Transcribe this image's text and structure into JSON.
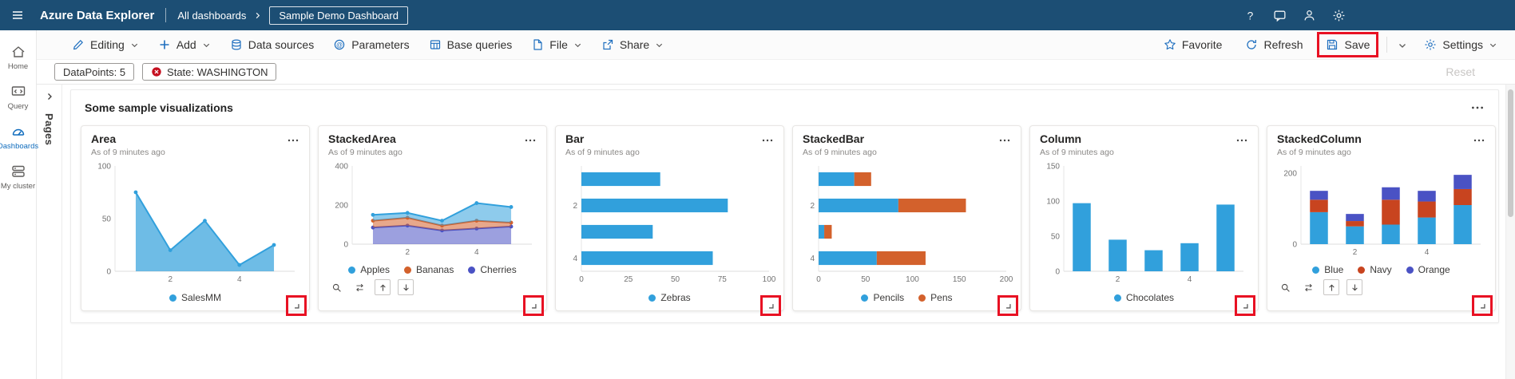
{
  "highlights": {
    "color": "#e81123",
    "save_button": true,
    "tile_resize_handles": true
  },
  "topbar": {
    "app_title": "Azure Data Explorer",
    "breadcrumb": {
      "root": "All dashboards",
      "current": "Sample Demo Dashboard"
    },
    "right_icons": [
      "help",
      "feedback",
      "person",
      "gear"
    ]
  },
  "toolbar": {
    "left_items": [
      {
        "label": "Editing",
        "icon": "pencil",
        "chevron": true
      },
      {
        "label": "Add",
        "icon": "plus",
        "chevron": true
      },
      {
        "label": "Data sources",
        "icon": "database",
        "chevron": false
      },
      {
        "label": "Parameters",
        "icon": "parameters",
        "chevron": false
      },
      {
        "label": "Base queries",
        "icon": "table",
        "chevron": false
      },
      {
        "label": "File",
        "icon": "file",
        "chevron": true
      },
      {
        "label": "Share",
        "icon": "share",
        "chevron": true
      }
    ],
    "right_items": [
      {
        "label": "Favorite",
        "icon": "star",
        "chevron": false,
        "highlighted": false,
        "split": false
      },
      {
        "label": "Refresh",
        "icon": "refresh",
        "chevron": false,
        "highlighted": false,
        "split": false
      },
      {
        "label": "Save",
        "icon": "save",
        "chevron": false,
        "highlighted": true,
        "split": true
      },
      {
        "label": "Settings",
        "icon": "gear",
        "chevron": true,
        "highlighted": false,
        "split": false
      }
    ]
  },
  "filters": {
    "pills": [
      {
        "label": "DataPoints: 5",
        "icon": null
      },
      {
        "label": "State: WASHINGTON",
        "icon": "red-x"
      }
    ],
    "reset_label": "Reset"
  },
  "sidebar": {
    "items": [
      {
        "label": "Home",
        "icon": "home",
        "active": false
      },
      {
        "label": "Query",
        "icon": "query",
        "active": false
      },
      {
        "label": "Dashboards",
        "icon": "gauge",
        "active": true
      },
      {
        "label": "My cluster",
        "icon": "cluster",
        "active": false
      }
    ]
  },
  "pages_panel": {
    "label": "Pages",
    "collapsed": true
  },
  "section": {
    "title": "Some sample visualizations"
  },
  "tiles": [
    {
      "title": "Area",
      "subtitle": "As of 9 minutes ago",
      "legend": [
        {
          "label": "SalesMM",
          "color": "#31a0dc"
        }
      ],
      "drill_icons": []
    },
    {
      "title": "StackedArea",
      "subtitle": "As of 9 minutes ago",
      "legend": [
        {
          "label": "Apples",
          "color": "#31a0dc"
        },
        {
          "label": "Bananas",
          "color": "#d3612c"
        },
        {
          "label": "Cherries",
          "color": "#4a52c4"
        }
      ],
      "drill_icons": [
        "search",
        "swap",
        "arrow-up",
        "arrow-down"
      ]
    },
    {
      "title": "Bar",
      "subtitle": "As of 9 minutes ago",
      "legend": [
        {
          "label": "Zebras",
          "color": "#31a0dc"
        }
      ],
      "drill_icons": []
    },
    {
      "title": "StackedBar",
      "subtitle": "As of 9 minutes ago",
      "legend": [
        {
          "label": "Pencils",
          "color": "#31a0dc"
        },
        {
          "label": "Pens",
          "color": "#d3612c"
        }
      ],
      "drill_icons": []
    },
    {
      "title": "Column",
      "subtitle": "As of 9 minutes ago",
      "legend": [
        {
          "label": "Chocolates",
          "color": "#31a0dc"
        }
      ],
      "drill_icons": []
    },
    {
      "title": "StackedColumn",
      "subtitle": "As of 9 minutes ago",
      "legend": [
        {
          "label": "Blue",
          "color": "#31a0dc"
        },
        {
          "label": "Navy",
          "color": "#c8441f"
        },
        {
          "label": "Orange",
          "color": "#4a52c4"
        }
      ],
      "drill_icons": [
        "search",
        "swap",
        "arrow-up",
        "arrow-down"
      ]
    }
  ],
  "chart_data": [
    {
      "type": "area",
      "title": "Area",
      "x": [
        1,
        2,
        3,
        4,
        5
      ],
      "values": [
        75,
        20,
        48,
        6,
        25
      ],
      "ylim": [
        0,
        100
      ],
      "yticks": [
        0,
        50,
        100
      ],
      "xticks": [
        2,
        4
      ],
      "color": "#31a0dc"
    },
    {
      "type": "stacked-area",
      "title": "StackedArea",
      "x": [
        1,
        2,
        3,
        4,
        5
      ],
      "series": [
        {
          "name": "Cherries",
          "color": "#4a52c4",
          "values": [
            85,
            95,
            70,
            80,
            90
          ]
        },
        {
          "name": "Bananas",
          "color": "#d3612c",
          "values": [
            35,
            40,
            25,
            40,
            20
          ]
        },
        {
          "name": "Apples",
          "color": "#31a0dc",
          "values": [
            30,
            25,
            25,
            90,
            80
          ]
        }
      ],
      "ylim": [
        0,
        400
      ],
      "yticks": [
        0,
        200,
        400
      ],
      "xticks": [
        2,
        4
      ]
    },
    {
      "type": "bar-h",
      "title": "Bar",
      "categories": [
        1,
        2,
        3,
        4
      ],
      "values": [
        42,
        78,
        38,
        70
      ],
      "xlim": [
        0,
        100
      ],
      "xticks": [
        0,
        25,
        50,
        75,
        100
      ],
      "ytick_positions": [
        2,
        4
      ],
      "color": "#31a0dc"
    },
    {
      "type": "stacked-bar-h",
      "title": "StackedBar",
      "categories": [
        1,
        2,
        3,
        4
      ],
      "series": [
        {
          "name": "Pencils",
          "color": "#31a0dc",
          "values": [
            38,
            85,
            6,
            62
          ]
        },
        {
          "name": "Pens",
          "color": "#d3612c",
          "values": [
            18,
            72,
            8,
            52
          ]
        }
      ],
      "xlim": [
        0,
        200
      ],
      "xticks": [
        0,
        50,
        100,
        150,
        200
      ],
      "ytick_positions": [
        2,
        4
      ]
    },
    {
      "type": "column",
      "title": "Column",
      "categories": [
        1,
        2,
        3,
        4,
        5
      ],
      "values": [
        97,
        45,
        30,
        40,
        95
      ],
      "ylim": [
        0,
        150
      ],
      "yticks": [
        0,
        50,
        100,
        150
      ],
      "xtick_positions": [
        2,
        4
      ],
      "color": "#31a0dc"
    },
    {
      "type": "stacked-column",
      "title": "StackedColumn",
      "categories": [
        1,
        2,
        3,
        4,
        5
      ],
      "series": [
        {
          "name": "Blue",
          "color": "#31a0dc",
          "values": [
            90,
            50,
            55,
            75,
            110
          ]
        },
        {
          "name": "Navy",
          "color": "#c8441f",
          "values": [
            35,
            15,
            70,
            45,
            45
          ]
        },
        {
          "name": "Orange",
          "color": "#4a52c4",
          "values": [
            25,
            20,
            35,
            30,
            40
          ]
        }
      ],
      "ylim": [
        0,
        220
      ],
      "yticks": [
        0,
        200
      ],
      "xtick_positions": [
        2,
        4
      ]
    }
  ]
}
